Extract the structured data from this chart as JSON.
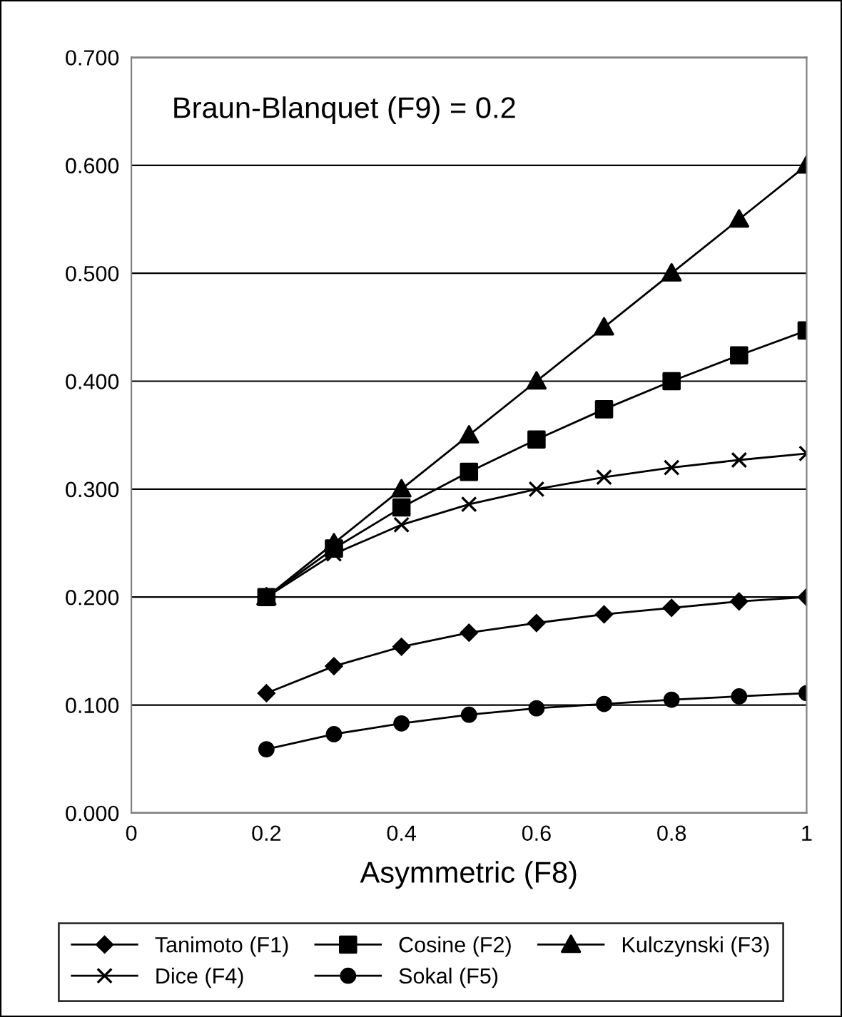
{
  "chart_data": {
    "type": "line",
    "xlabel": "Asymmetric (F8)",
    "annotations": [
      "Braun-Blanquet (F9) = 0.2"
    ],
    "x": [
      0.2,
      0.3,
      0.4,
      0.5,
      0.6,
      0.7,
      0.8,
      0.9,
      1.0
    ],
    "series": [
      {
        "name": "Tanimoto (F1)",
        "color": "#000000",
        "marker": "diamond",
        "values": [
          0.111,
          0.136,
          0.154,
          0.167,
          0.176,
          0.184,
          0.19,
          0.196,
          0.2
        ]
      },
      {
        "name": "Cosine (F2)",
        "color": "#000000",
        "marker": "square",
        "values": [
          0.2,
          0.245,
          0.283,
          0.316,
          0.346,
          0.374,
          0.4,
          0.424,
          0.447
        ]
      },
      {
        "name": "Kulczynski (F3)",
        "color": "#000000",
        "marker": "triangle",
        "values": [
          0.2,
          0.25,
          0.3,
          0.35,
          0.4,
          0.45,
          0.5,
          0.55,
          0.6
        ]
      },
      {
        "name": "Dice (F4)",
        "color": "#000000",
        "marker": "cross",
        "values": [
          0.2,
          0.24,
          0.267,
          0.286,
          0.3,
          0.311,
          0.32,
          0.327,
          0.333
        ]
      },
      {
        "name": "Sokal (F5)",
        "color": "#000000",
        "marker": "circle",
        "values": [
          0.059,
          0.073,
          0.083,
          0.091,
          0.097,
          0.101,
          0.105,
          0.108,
          0.111
        ]
      }
    ],
    "xlim": [
      0,
      1
    ],
    "xticks": [
      0,
      0.2,
      0.4,
      0.6,
      0.8,
      1
    ],
    "ylim": [
      0,
      0.7
    ],
    "yticks": [
      {
        "value": 0,
        "label": "0.000"
      },
      {
        "value": 0.1,
        "label": "0.100"
      },
      {
        "value": 0.2,
        "label": "0.200"
      },
      {
        "value": 0.3,
        "label": "0.300"
      },
      {
        "value": 0.4,
        "label": "0.400"
      },
      {
        "value": 0.5,
        "label": "0.500"
      },
      {
        "value": 0.6,
        "label": "0.600"
      },
      {
        "value": 0.7,
        "label": "0.700"
      }
    ],
    "grid": "y",
    "legend": "bottom",
    "line_style": "solid"
  }
}
